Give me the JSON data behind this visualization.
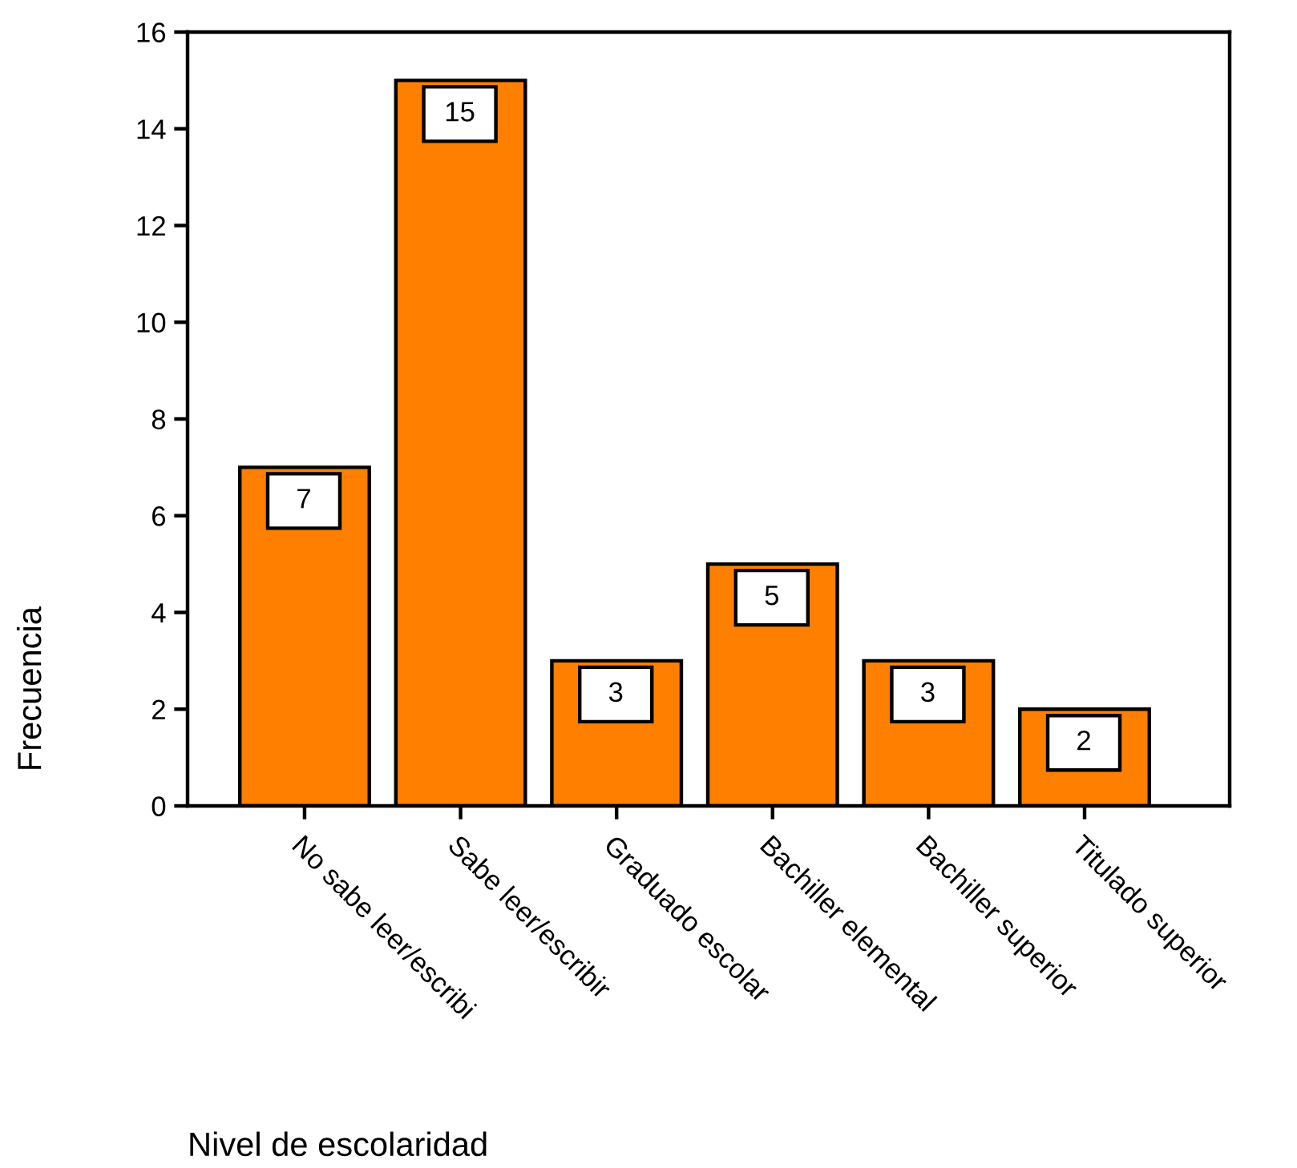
{
  "chart_data": {
    "type": "bar",
    "xlabel": "Nivel de escolaridad",
    "ylabel": "Frecuencia",
    "categories": [
      "No sabe leer/escribi",
      "Sabe leer/escribir",
      "Graduado escolar",
      "Bachiller elemental",
      "Bachiller superior",
      "Titulado superior"
    ],
    "values": [
      7,
      15,
      3,
      5,
      3,
      2
    ],
    "color": "#ff8000",
    "ylim": [
      0,
      16
    ],
    "yticks": [
      0,
      2,
      4,
      6,
      8,
      10,
      12,
      14,
      16
    ],
    "data_labels": true
  }
}
